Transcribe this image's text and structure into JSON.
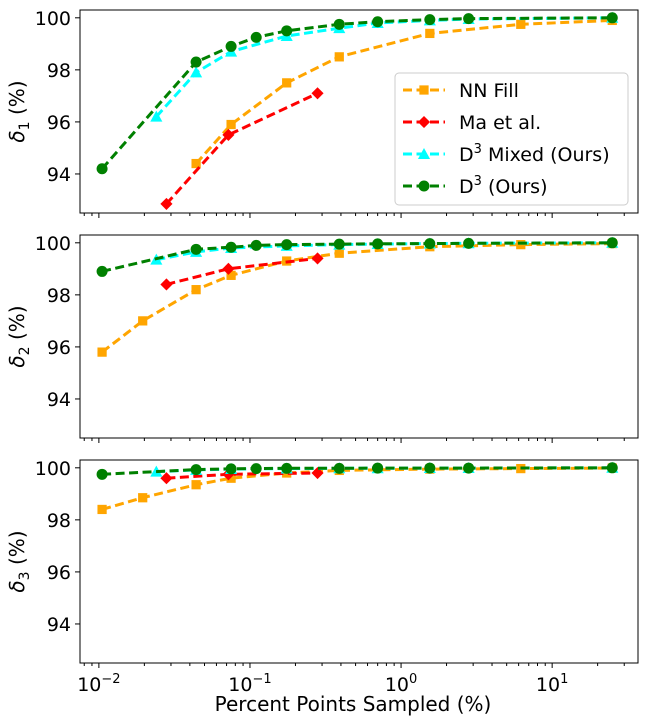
{
  "chart_data": [
    {
      "type": "line",
      "ylabel": "δ1 (%)",
      "ylabel_main": "δ",
      "ylabel_sub": "1",
      "ylabel_unit": " (%)",
      "xscale": "log",
      "xlim": [
        0.0075,
        37
      ],
      "ylim": [
        92.5,
        100.3
      ],
      "yticks": [
        94,
        96,
        98,
        100
      ],
      "legend": {
        "placement": "lower-right",
        "entries": [
          "NN Fill",
          "Ma et al.",
          "D3 Mixed (Ours)",
          "D3 (Ours)"
        ]
      },
      "series": [
        {
          "name": "NN Fill",
          "color": "#ffa500",
          "marker": "square",
          "x": [
            0.044,
            0.075,
            0.175,
            0.39,
            1.55,
            6.2,
            25
          ],
          "y": [
            94.4,
            95.9,
            97.5,
            98.5,
            99.4,
            99.75,
            99.9
          ]
        },
        {
          "name": "Ma et al.",
          "color": "#ff0000",
          "marker": "diamond",
          "x": [
            0.028,
            0.072,
            0.28
          ],
          "y": [
            92.85,
            95.5,
            97.1
          ]
        },
        {
          "name": "D3 Mixed (Ours)",
          "color": "#00ffff",
          "marker": "triangle",
          "x": [
            0.024,
            0.044,
            0.075,
            0.175,
            0.39,
            0.7,
            1.55,
            2.8,
            25
          ],
          "y": [
            96.2,
            97.9,
            98.7,
            99.3,
            99.6,
            99.8,
            99.9,
            99.95,
            100
          ]
        },
        {
          "name": "D3 (Ours)",
          "color": "#008000",
          "marker": "circle",
          "x": [
            0.0105,
            0.044,
            0.075,
            0.11,
            0.175,
            0.39,
            0.7,
            1.55,
            2.8,
            25
          ],
          "y": [
            94.2,
            98.3,
            98.9,
            99.25,
            99.5,
            99.75,
            99.85,
            99.93,
            99.97,
            100
          ]
        }
      ]
    },
    {
      "type": "line",
      "ylabel": "δ2 (%)",
      "ylabel_main": "δ",
      "ylabel_sub": "2",
      "ylabel_unit": " (%)",
      "xscale": "log",
      "xlim": [
        0.0075,
        37
      ],
      "ylim": [
        92.5,
        100.3
      ],
      "yticks": [
        94,
        96,
        98,
        100
      ],
      "series": [
        {
          "name": "NN Fill",
          "color": "#ffa500",
          "marker": "square",
          "x": [
            0.0105,
            0.0195,
            0.044,
            0.075,
            0.175,
            0.39,
            1.55,
            6.2,
            25
          ],
          "y": [
            95.8,
            97.0,
            98.2,
            98.75,
            99.3,
            99.6,
            99.85,
            99.93,
            99.97
          ]
        },
        {
          "name": "Ma et al.",
          "color": "#ff0000",
          "marker": "diamond",
          "x": [
            0.028,
            0.072,
            0.28
          ],
          "y": [
            98.4,
            99.0,
            99.4
          ]
        },
        {
          "name": "D3 Mixed (Ours)",
          "color": "#00ffff",
          "marker": "triangle",
          "x": [
            0.024,
            0.044,
            0.075,
            0.175,
            0.39,
            0.7,
            1.55,
            2.8,
            25
          ],
          "y": [
            99.35,
            99.65,
            99.8,
            99.88,
            99.93,
            99.95,
            99.97,
            99.98,
            100
          ]
        },
        {
          "name": "D3 (Ours)",
          "color": "#008000",
          "marker": "circle",
          "x": [
            0.0105,
            0.044,
            0.075,
            0.11,
            0.175,
            0.39,
            0.7,
            1.55,
            2.8,
            25
          ],
          "y": [
            98.9,
            99.75,
            99.83,
            99.9,
            99.93,
            99.95,
            99.96,
            99.97,
            99.98,
            100
          ]
        }
      ]
    },
    {
      "type": "line",
      "ylabel": "δ3 (%)",
      "ylabel_main": "δ",
      "ylabel_sub": "3",
      "ylabel_unit": " (%)",
      "xlabel": "Percent Points Sampled (%)",
      "xscale": "log",
      "xlim": [
        0.0075,
        37
      ],
      "ylim": [
        92.5,
        100.3
      ],
      "yticks": [
        94,
        96,
        98,
        100
      ],
      "xticks": [
        {
          "value": 0.01,
          "base": "10",
          "exp": "−2"
        },
        {
          "value": 0.1,
          "base": "10",
          "exp": "−1"
        },
        {
          "value": 1,
          "base": "10",
          "exp": "0"
        },
        {
          "value": 10,
          "base": "10",
          "exp": "1"
        }
      ],
      "series": [
        {
          "name": "NN Fill",
          "color": "#ffa500",
          "marker": "square",
          "x": [
            0.0105,
            0.0195,
            0.044,
            0.075,
            0.175,
            0.39,
            1.55,
            6.2,
            25
          ],
          "y": [
            98.4,
            98.85,
            99.35,
            99.6,
            99.8,
            99.9,
            99.95,
            99.97,
            99.99
          ]
        },
        {
          "name": "Ma et al.",
          "color": "#ff0000",
          "marker": "diamond",
          "x": [
            0.028,
            0.072,
            0.28
          ],
          "y": [
            99.6,
            99.75,
            99.8
          ]
        },
        {
          "name": "D3 Mixed (Ours)",
          "color": "#00ffff",
          "marker": "triangle",
          "x": [
            0.024,
            0.044,
            0.075,
            0.175,
            0.39,
            0.7,
            1.55,
            2.8,
            25
          ],
          "y": [
            99.85,
            99.92,
            99.95,
            99.97,
            99.98,
            99.98,
            99.99,
            99.99,
            100
          ]
        },
        {
          "name": "D3 (Ours)",
          "color": "#008000",
          "marker": "circle",
          "x": [
            0.0105,
            0.044,
            0.075,
            0.11,
            0.175,
            0.39,
            0.7,
            1.55,
            2.8,
            25
          ],
          "y": [
            99.75,
            99.93,
            99.96,
            99.97,
            99.98,
            99.98,
            99.99,
            99.99,
            99.99,
            100
          ]
        }
      ]
    }
  ]
}
